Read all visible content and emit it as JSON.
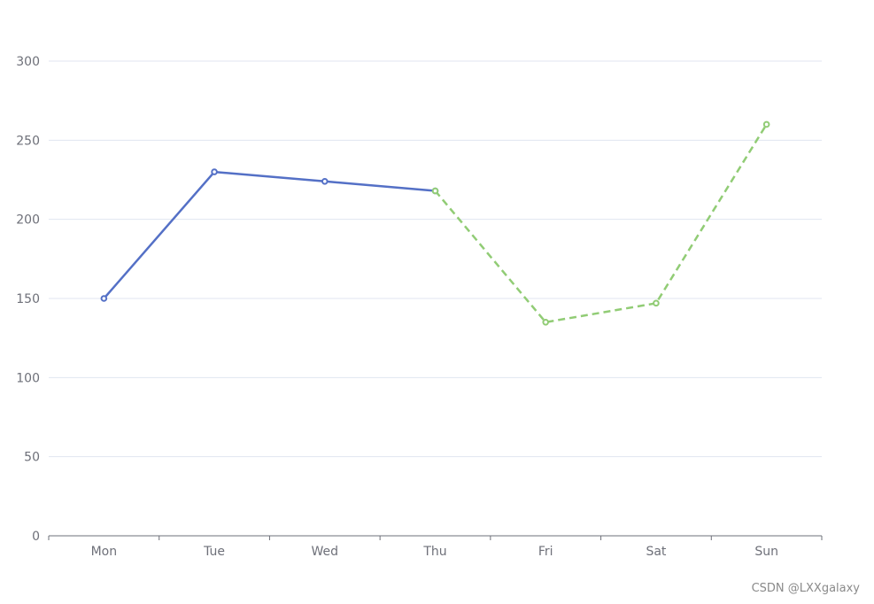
{
  "chart_data": {
    "type": "line",
    "categories": [
      "Mon",
      "Tue",
      "Wed",
      "Thu",
      "Fri",
      "Sat",
      "Sun"
    ],
    "ylim": [
      0,
      300
    ],
    "yticks": [
      0,
      50,
      100,
      150,
      200,
      250,
      300
    ],
    "grid": true,
    "series": [
      {
        "values": [
          150,
          230,
          224,
          218,
          null,
          null,
          null
        ],
        "color": "#5470c6",
        "style": "solid"
      },
      {
        "values": [
          null,
          null,
          null,
          218,
          135,
          147,
          260
        ],
        "color": "#91cc75",
        "style": "dashed"
      }
    ]
  },
  "watermark": "CSDN @LXXgalaxy"
}
